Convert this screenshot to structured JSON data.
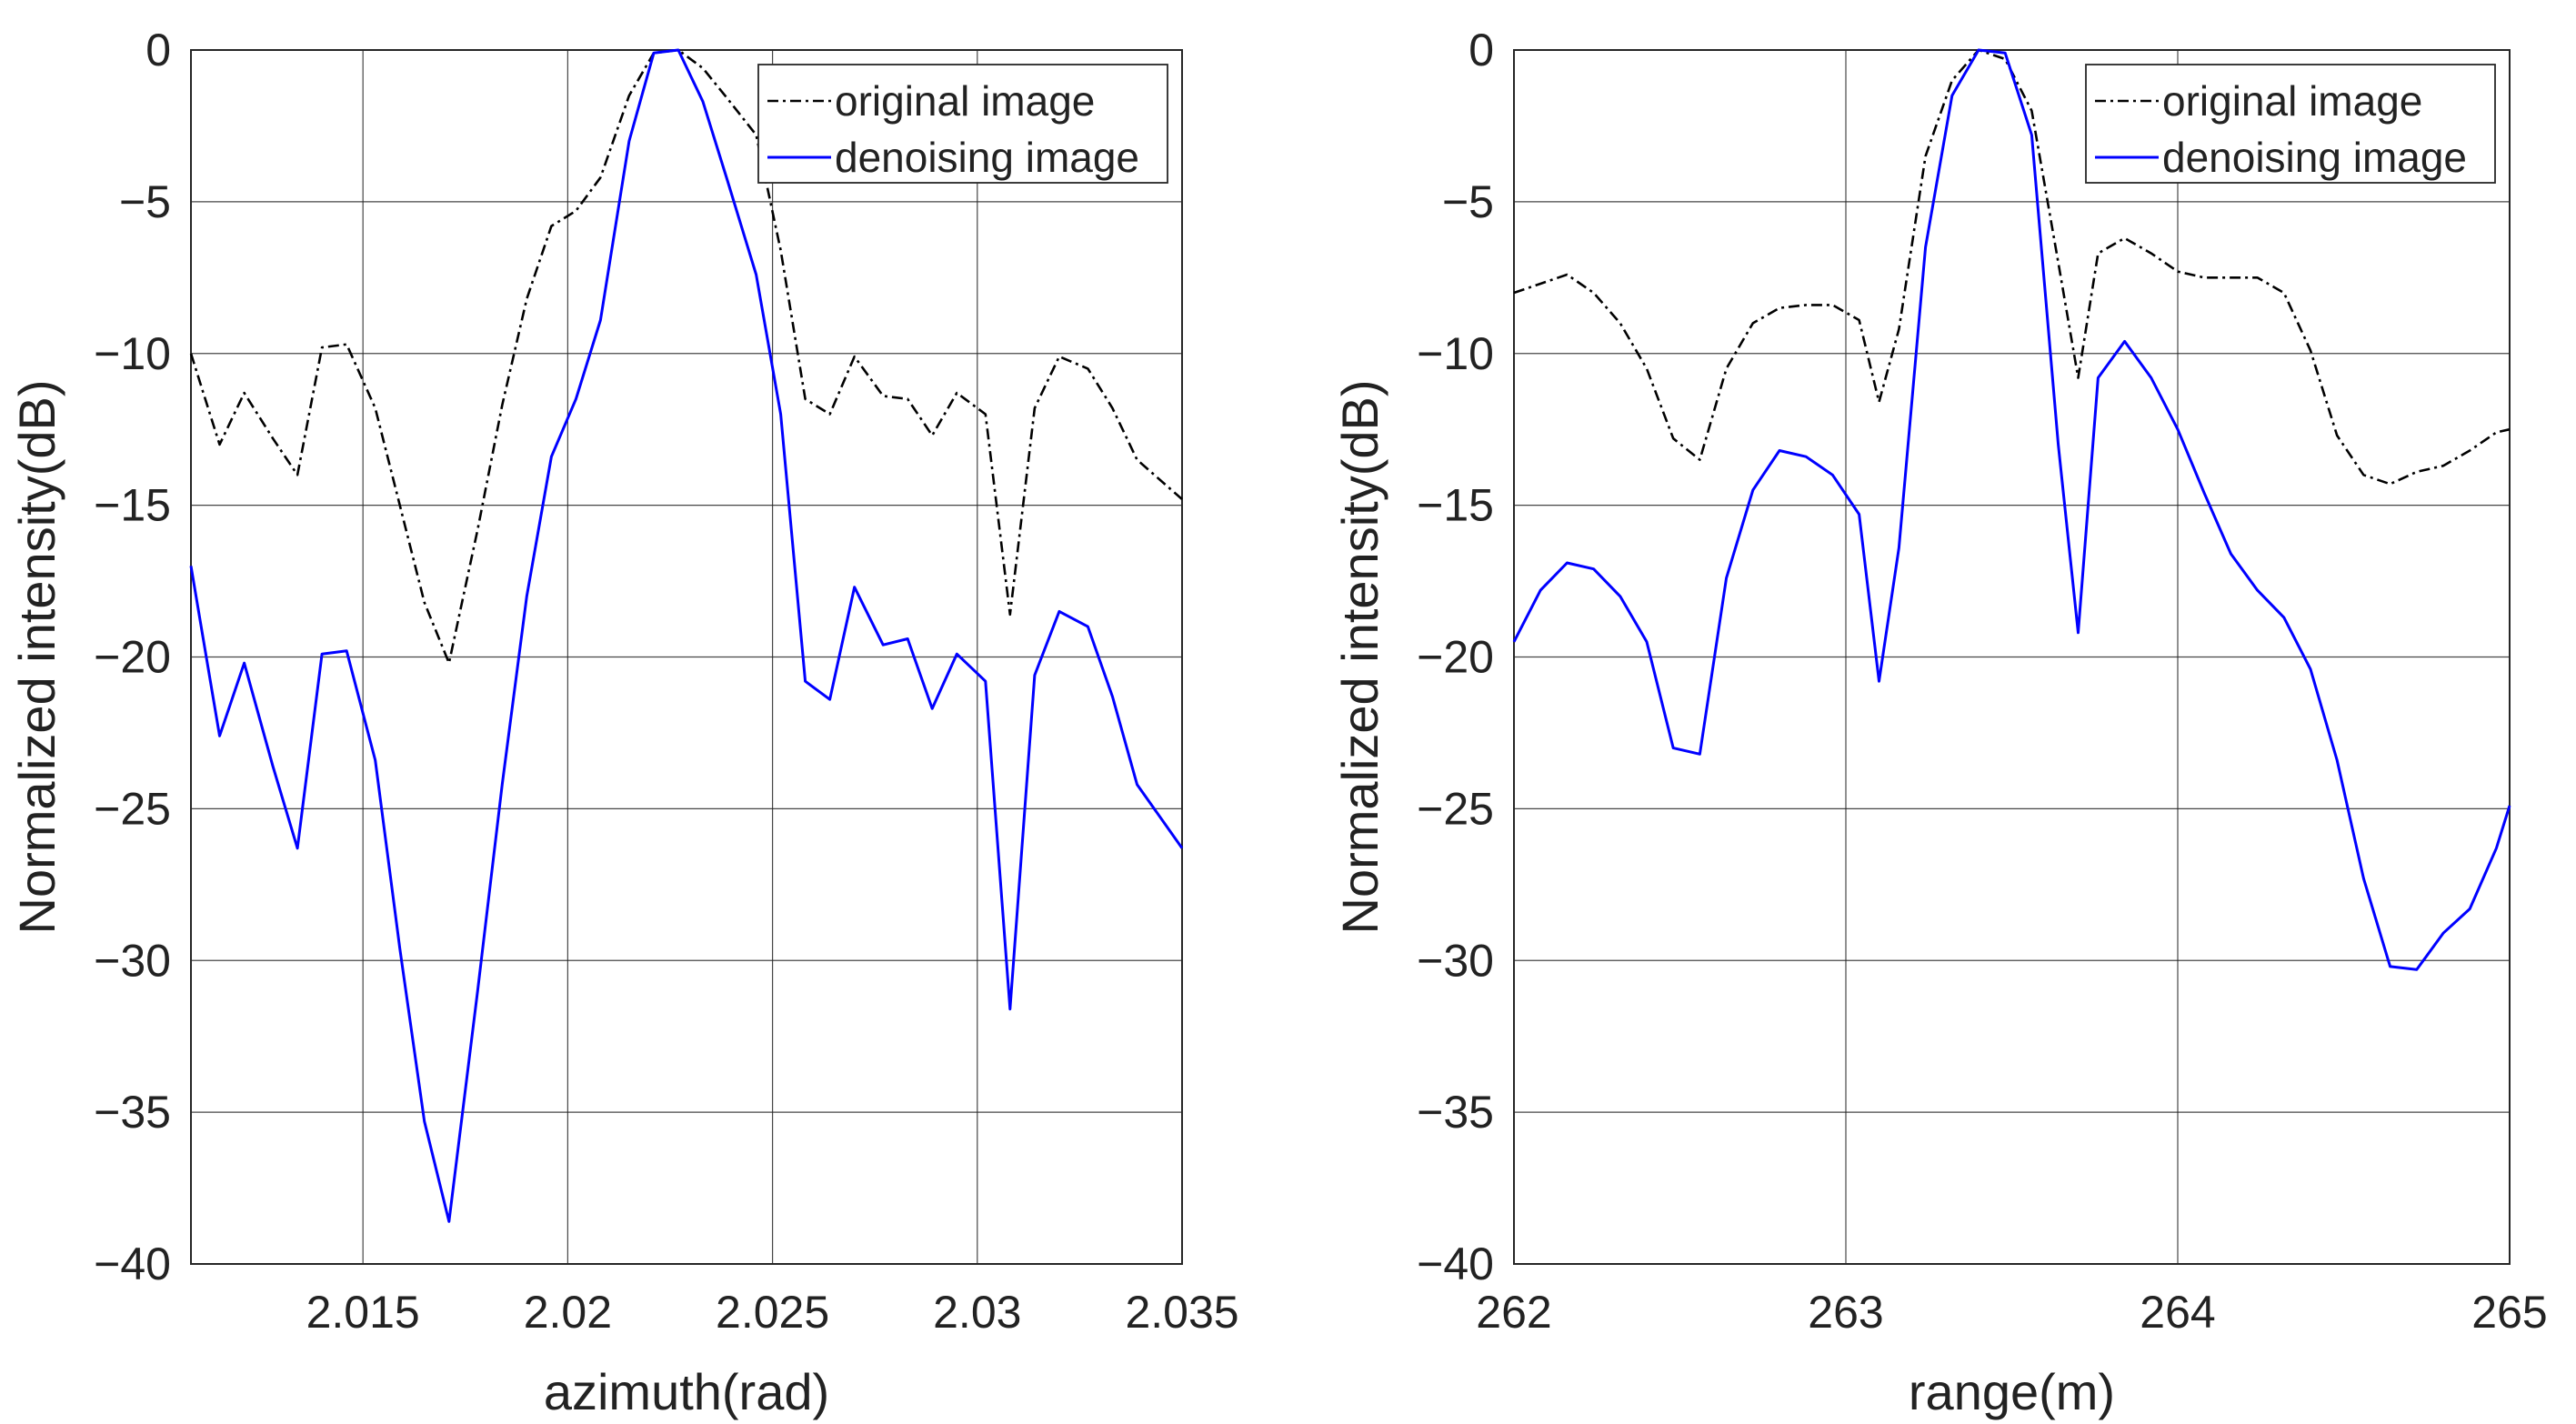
{
  "chart_data": [
    {
      "type": "line",
      "xlabel": "azimuth(rad)",
      "ylabel": "Normalized intensity(dB)",
      "xlim": [
        2.0108,
        2.035
      ],
      "ylim": [
        -40,
        0
      ],
      "xticks": [
        2.015,
        2.02,
        2.025,
        2.03,
        2.035
      ],
      "xtick_labels": [
        "2.015",
        "2.02",
        "2.025",
        "2.03",
        "2.035"
      ],
      "yticks": [
        0,
        -5,
        -10,
        -15,
        -20,
        -25,
        -30,
        -35,
        -40
      ],
      "ytick_labels": [
        "0",
        "−5",
        "−10",
        "−15",
        "−20",
        "−25",
        "−30",
        "−35",
        "−40"
      ],
      "grid": true,
      "legend_position": "top-right",
      "series": [
        {
          "name": "original image",
          "color": "#000000",
          "style": "dash-dot",
          "x": [
            2.0108,
            2.0115,
            2.0121,
            2.0128,
            2.0134,
            2.014,
            2.0146,
            2.0153,
            2.0159,
            2.0165,
            2.0171,
            2.0178,
            2.0184,
            2.019,
            2.0196,
            2.0202,
            2.0208,
            2.0215,
            2.0221,
            2.0227,
            2.0233,
            2.0239,
            2.0246,
            2.0252,
            2.0258,
            2.0264,
            2.027,
            2.0277,
            2.0283,
            2.0289,
            2.0295,
            2.0302,
            2.0308,
            2.0314,
            2.032,
            2.0327,
            2.0333,
            2.0339,
            2.035
          ],
          "values": [
            -10.0,
            -13.0,
            -11.3,
            -12.8,
            -14.0,
            -9.8,
            -9.7,
            -11.8,
            -15.0,
            -18.2,
            -20.2,
            -15.8,
            -11.7,
            -8.2,
            -5.8,
            -5.3,
            -4.2,
            -1.5,
            -0.1,
            0.0,
            -0.6,
            -1.6,
            -2.8,
            -6.6,
            -11.5,
            -12.0,
            -10.1,
            -11.4,
            -11.5,
            -12.7,
            -11.3,
            -12.0,
            -18.6,
            -11.8,
            -10.1,
            -10.5,
            -11.8,
            -13.5,
            -14.8
          ]
        },
        {
          "name": "denoising image",
          "color": "#0000ff",
          "style": "solid",
          "x": [
            2.0108,
            2.0115,
            2.0121,
            2.0128,
            2.0134,
            2.014,
            2.0146,
            2.0153,
            2.0159,
            2.0165,
            2.0171,
            2.0178,
            2.0184,
            2.019,
            2.0196,
            2.0202,
            2.0208,
            2.0215,
            2.0221,
            2.0227,
            2.0233,
            2.0239,
            2.0246,
            2.0252,
            2.0258,
            2.0264,
            2.027,
            2.0277,
            2.0283,
            2.0289,
            2.0295,
            2.0302,
            2.0308,
            2.0314,
            2.032,
            2.0327,
            2.0333,
            2.0339,
            2.035
          ],
          "values": [
            -17.0,
            -22.6,
            -20.2,
            -23.6,
            -26.3,
            -19.9,
            -19.8,
            -23.4,
            -29.6,
            -35.3,
            -38.6,
            -31.0,
            -24.2,
            -18.0,
            -13.4,
            -11.5,
            -8.9,
            -3.0,
            -0.1,
            0.0,
            -1.7,
            -4.3,
            -7.4,
            -12.0,
            -20.8,
            -21.4,
            -17.7,
            -19.6,
            -19.4,
            -21.7,
            -19.9,
            -20.8,
            -31.6,
            -20.6,
            -18.5,
            -19.0,
            -21.3,
            -24.2,
            -26.3
          ]
        }
      ]
    },
    {
      "type": "line",
      "xlabel": "range(m)",
      "ylabel": "Normalized intensity(dB)",
      "xlim": [
        262,
        265
      ],
      "ylim": [
        -40,
        0
      ],
      "xticks": [
        262,
        263,
        264,
        265
      ],
      "xtick_labels": [
        "262",
        "263",
        "264",
        "265"
      ],
      "yticks": [
        0,
        -5,
        -10,
        -15,
        -20,
        -25,
        -30,
        -35,
        -40
      ],
      "ytick_labels": [
        "0",
        "−5",
        "−10",
        "−15",
        "−20",
        "−25",
        "−30",
        "−35",
        "−40"
      ],
      "grid": true,
      "legend_position": "top-right",
      "series": [
        {
          "name": "original image",
          "color": "#000000",
          "style": "dash-dot",
          "x": [
            262.0,
            262.08,
            262.16,
            262.24,
            262.32,
            262.4,
            262.48,
            262.56,
            262.64,
            262.72,
            262.8,
            262.88,
            262.96,
            263.04,
            263.1,
            263.16,
            263.24,
            263.32,
            263.4,
            263.48,
            263.56,
            263.64,
            263.7,
            263.76,
            263.84,
            263.92,
            264.0,
            264.08,
            264.16,
            264.24,
            264.32,
            264.4,
            264.48,
            264.56,
            264.64,
            264.72,
            264.8,
            264.88,
            264.96,
            265.0
          ],
          "values": [
            -8.0,
            -7.7,
            -7.4,
            -8.0,
            -9.0,
            -10.5,
            -12.8,
            -13.5,
            -10.5,
            -9.0,
            -8.5,
            -8.4,
            -8.4,
            -8.9,
            -11.6,
            -9.2,
            -3.5,
            -1.0,
            0.0,
            -0.3,
            -2.0,
            -7.0,
            -10.8,
            -6.7,
            -6.2,
            -6.7,
            -7.3,
            -7.5,
            -7.5,
            -7.5,
            -8.0,
            -9.9,
            -12.7,
            -14.0,
            -14.3,
            -13.9,
            -13.7,
            -13.2,
            -12.6,
            -12.5
          ]
        },
        {
          "name": "denoising image",
          "color": "#0000ff",
          "style": "solid",
          "x": [
            262.0,
            262.08,
            262.16,
            262.24,
            262.32,
            262.4,
            262.48,
            262.56,
            262.64,
            262.72,
            262.8,
            262.88,
            262.96,
            263.04,
            263.1,
            263.16,
            263.24,
            263.32,
            263.4,
            263.48,
            263.56,
            263.64,
            263.7,
            263.76,
            263.84,
            263.92,
            264.0,
            264.08,
            264.16,
            264.24,
            264.32,
            264.4,
            264.48,
            264.56,
            264.64,
            264.72,
            264.8,
            264.88,
            264.96,
            265.0
          ],
          "values": [
            -19.5,
            -17.8,
            -16.9,
            -17.1,
            -18.0,
            -19.5,
            -23.0,
            -23.2,
            -17.4,
            -14.5,
            -13.2,
            -13.4,
            -14.0,
            -15.3,
            -20.8,
            -16.4,
            -6.5,
            -1.5,
            0.0,
            -0.1,
            -2.8,
            -13.0,
            -19.2,
            -10.8,
            -9.6,
            -10.8,
            -12.5,
            -14.6,
            -16.6,
            -17.8,
            -18.7,
            -20.4,
            -23.4,
            -27.3,
            -30.2,
            -30.3,
            -29.1,
            -28.3,
            -26.3,
            -24.9
          ]
        }
      ]
    }
  ]
}
